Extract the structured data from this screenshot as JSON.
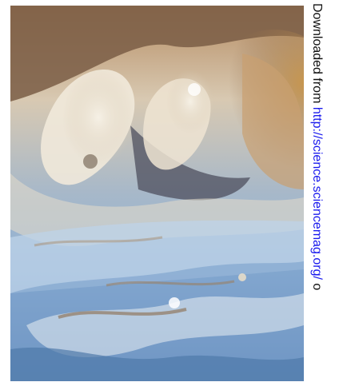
{
  "image": {
    "subject": "jupiter-clouds-photo",
    "colors": {
      "tan": "#c9a57a",
      "cream": "#efe6d6",
      "blue": "#6f97c4",
      "pale_blue": "#b8cfe4",
      "dark": "#4a4a58",
      "brown": "#8a6a4a"
    }
  },
  "side_note": {
    "prefix": "Downloaded from ",
    "link": "http://science.sciencemag.org/",
    "suffix": " o"
  }
}
